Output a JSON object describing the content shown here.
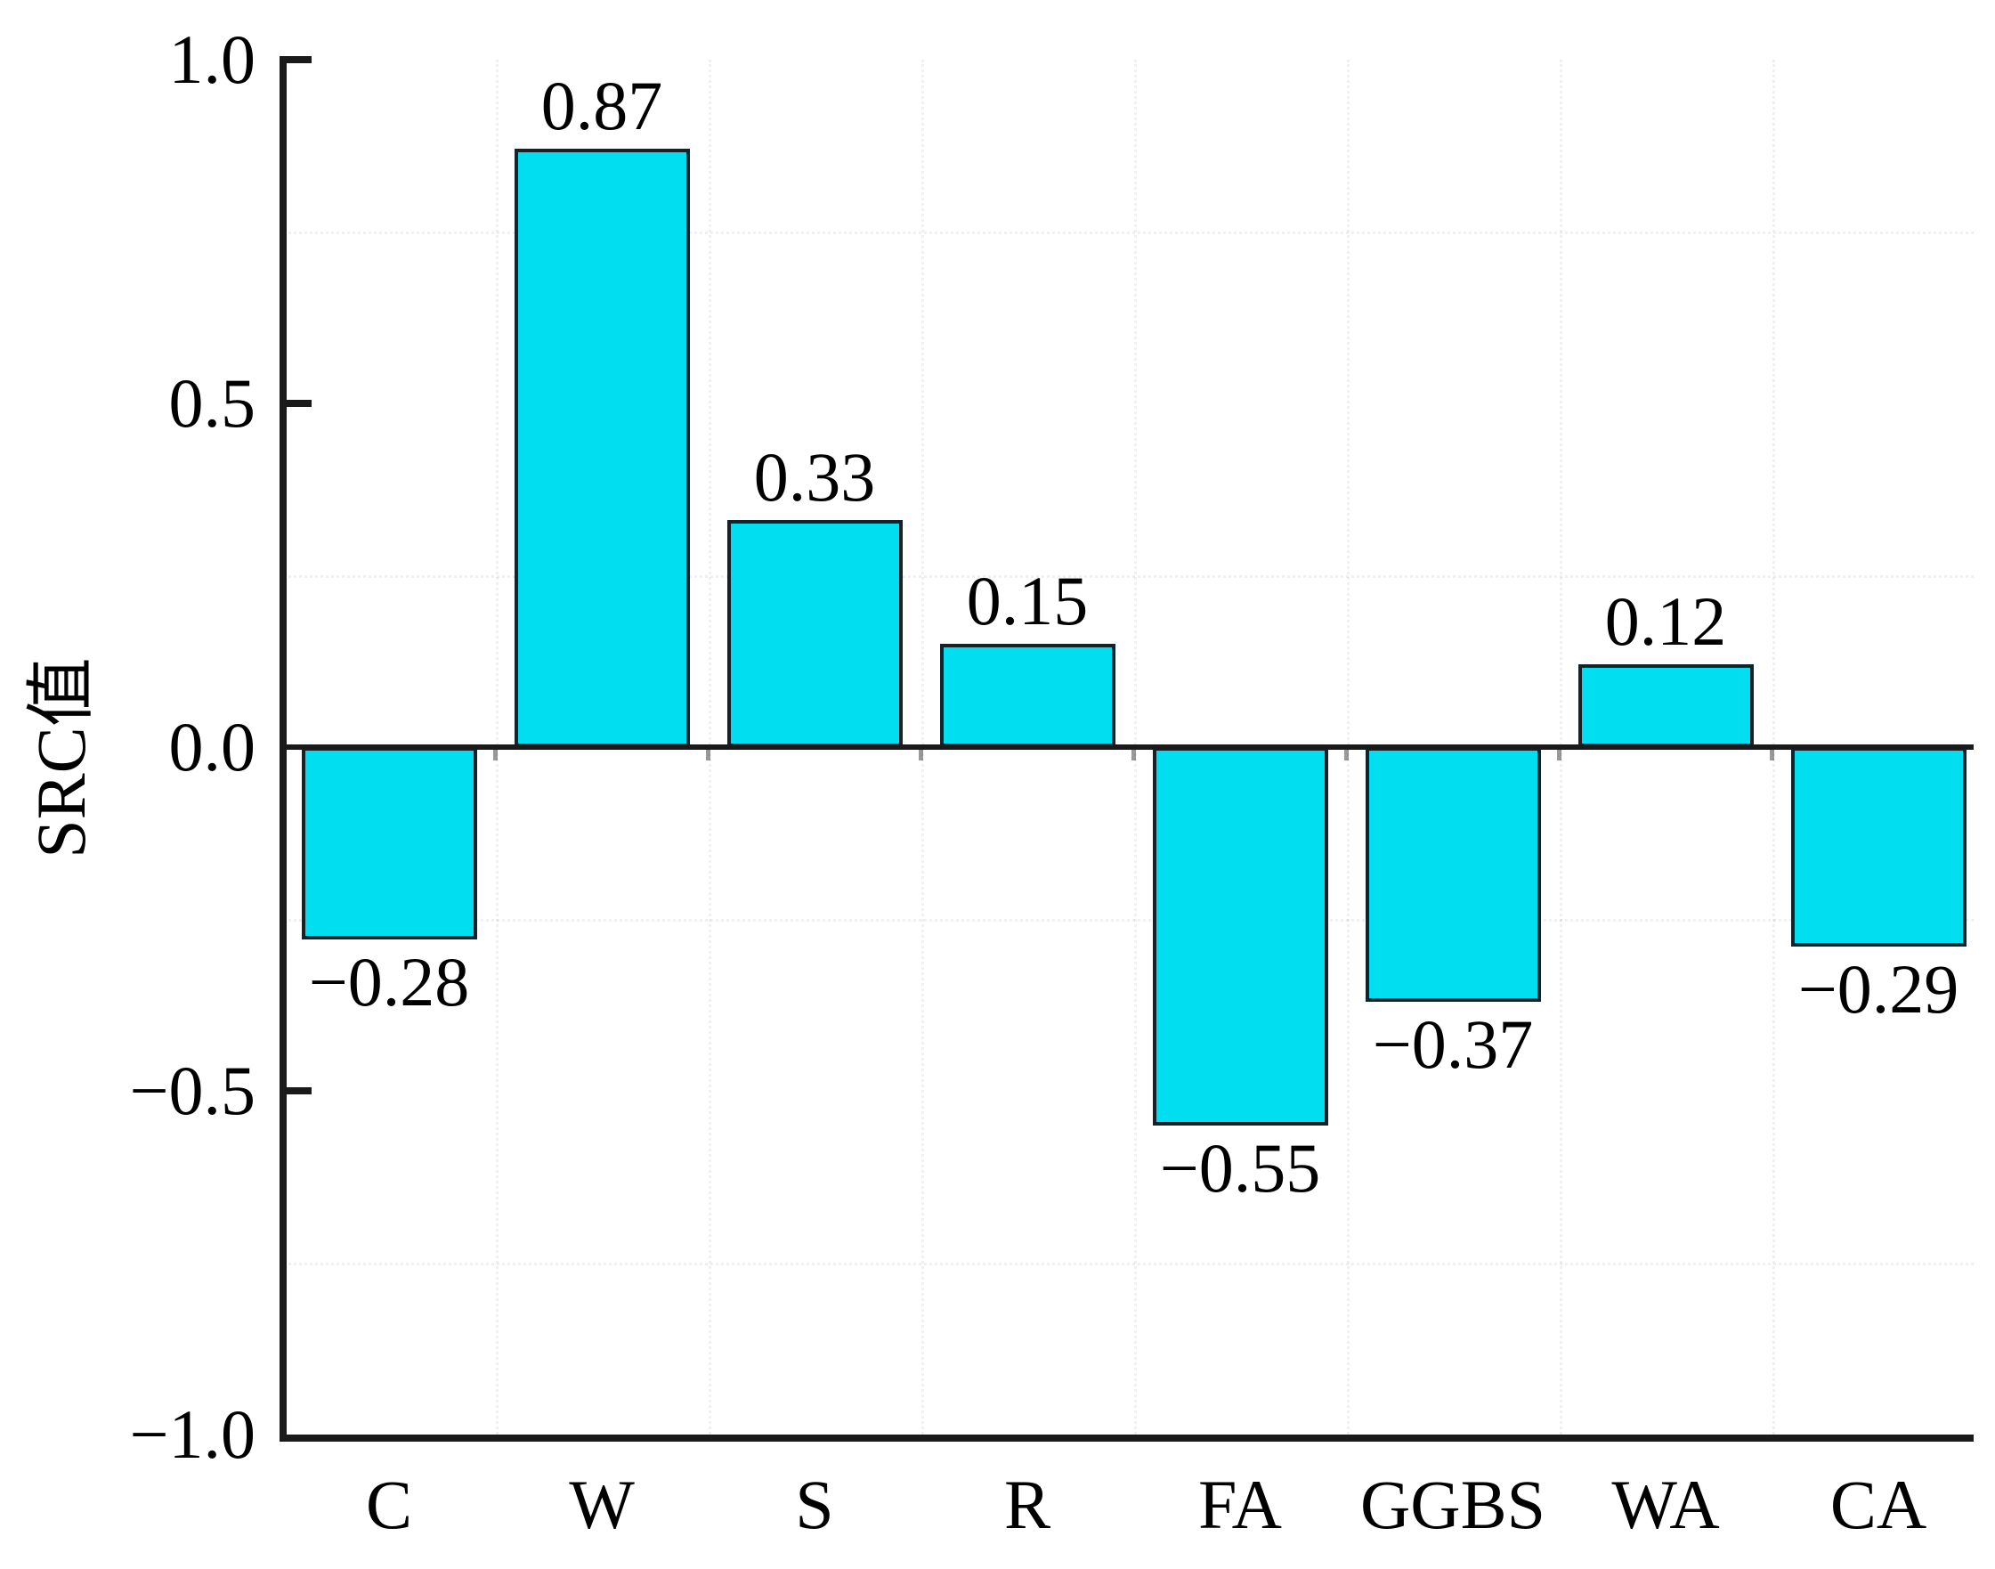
{
  "chart_data": {
    "type": "bar",
    "title": "",
    "xlabel": "",
    "ylabel": "SRC值",
    "ylim": [
      -1.0,
      1.0
    ],
    "categories": [
      "C",
      "W",
      "S",
      "R",
      "FA",
      "GGBS",
      "WA",
      "CA"
    ],
    "values": [
      -0.28,
      0.87,
      0.33,
      0.15,
      -0.55,
      -0.37,
      0.12,
      -0.29
    ],
    "value_labels": [
      "−0.28",
      "0.87",
      "0.33",
      "0.15",
      "−0.55",
      "−0.37",
      "0.12",
      "−0.29"
    ],
    "yticks": [
      {
        "value": 1.0,
        "label": "1.0"
      },
      {
        "value": 0.5,
        "label": "0.5"
      },
      {
        "value": 0.0,
        "label": "0.0"
      },
      {
        "value": -0.5,
        "label": "−0.5"
      },
      {
        "value": -1.0,
        "label": "−1.0"
      }
    ],
    "grid": {
      "minor_y_values": [
        0.75,
        0.25,
        -0.25,
        -0.75
      ],
      "style": "faint-dotted",
      "vertical_at_category_boundaries": true
    },
    "legend": "none",
    "colors": {
      "bar_fill": "#00DEEF",
      "bar_border": "#13222b",
      "axis": "#1a1a1a",
      "text": "#000000",
      "background": "#ffffff"
    }
  }
}
